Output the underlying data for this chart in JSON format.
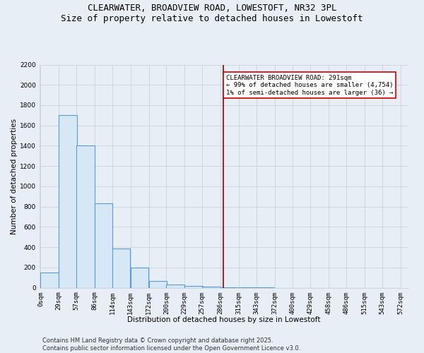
{
  "title_line1": "CLEARWATER, BROADVIEW ROAD, LOWESTOFT, NR32 3PL",
  "title_line2": "Size of property relative to detached houses in Lowestoft",
  "xlabel": "Distribution of detached houses by size in Lowestoft",
  "ylabel": "Number of detached properties",
  "bar_values": [
    150,
    1700,
    1400,
    830,
    390,
    200,
    70,
    30,
    15,
    8,
    5,
    3,
    1,
    0,
    0,
    0,
    0,
    0,
    0,
    0
  ],
  "bar_left_edges": [
    0,
    29,
    57,
    86,
    114,
    143,
    172,
    200,
    229,
    257,
    286,
    315,
    343,
    372,
    400,
    429,
    458,
    486,
    515,
    543
  ],
  "bar_width": 28.5,
  "bar_color": "#d6e8f5",
  "bar_edge_color": "#5b9bd5",
  "bar_linewidth": 0.8,
  "background_color": "#e8eef5",
  "grid_color": "#c8d4e0",
  "vline_x": 291,
  "vline_color": "#990000",
  "vline_linewidth": 1.2,
  "annotation_text": "CLEARWATER BROADVIEW ROAD: 291sqm\n← 99% of detached houses are smaller (4,754)\n1% of semi-detached houses are larger (36) →",
  "annotation_box_color": "#ffffff",
  "annotation_border_color": "#cc0000",
  "ylim": [
    0,
    2200
  ],
  "yticks": [
    0,
    200,
    400,
    600,
    800,
    1000,
    1200,
    1400,
    1600,
    1800,
    2000,
    2200
  ],
  "xtick_labels": [
    "0sqm",
    "29sqm",
    "57sqm",
    "86sqm",
    "114sqm",
    "143sqm",
    "172sqm",
    "200sqm",
    "229sqm",
    "257sqm",
    "286sqm",
    "315sqm",
    "343sqm",
    "372sqm",
    "400sqm",
    "429sqm",
    "458sqm",
    "486sqm",
    "515sqm",
    "543sqm",
    "572sqm"
  ],
  "xtick_positions": [
    0,
    29,
    57,
    86,
    114,
    143,
    172,
    200,
    229,
    257,
    286,
    315,
    343,
    372,
    400,
    429,
    458,
    486,
    515,
    543,
    572
  ],
  "footer_text": "Contains HM Land Registry data © Crown copyright and database right 2025.\nContains public sector information licensed under the Open Government Licence v3.0.",
  "title_fontsize": 9,
  "axis_label_fontsize": 7.5,
  "tick_fontsize": 6.5,
  "footer_fontsize": 6,
  "annotation_fontsize": 6.5
}
